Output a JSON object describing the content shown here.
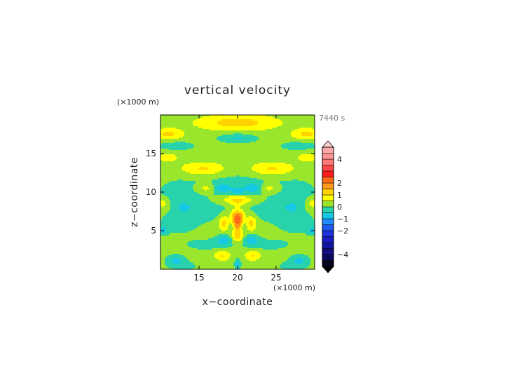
{
  "chart_data": {
    "type": "heatmap",
    "title": "vertical velocity",
    "xlabel": "x−coordinate",
    "ylabel": "z−coordinate",
    "x_unit": "(×1000 m)",
    "y_unit": "(×1000 m)",
    "time_label": "7440 s",
    "xlim": [
      10,
      30
    ],
    "ylim": [
      0,
      20
    ],
    "x_ticks": [
      15,
      20,
      25
    ],
    "y_ticks": [
      5,
      10,
      15
    ],
    "colorbar": {
      "levels": [
        -5,
        -4.5,
        -4,
        -3.5,
        -3,
        -2.5,
        -2,
        -1.5,
        -1,
        -0.5,
        0,
        0.5,
        1,
        1.5,
        2,
        2.5,
        3,
        3.5,
        4,
        4.5,
        5
      ],
      "colors": [
        "#05051e",
        "#0a0a5a",
        "#101080",
        "#1414a0",
        "#1a1ac0",
        "#1e32dc",
        "#1e5af0",
        "#1e8cff",
        "#14c8e6",
        "#28d2aa",
        "#9ae62d",
        "#ffff00",
        "#ffd200",
        "#ff9a19",
        "#ff6a19",
        "#ff1e1e",
        "#ff4646",
        "#ff7878",
        "#ff9696",
        "#ffaaaa",
        "#ffc8c8"
      ],
      "labeled_ticks": [
        -4,
        -2,
        -1,
        0,
        1,
        2,
        4
      ],
      "tick_labels": [
        "−4",
        "−2",
        "−1",
        "0",
        "1",
        "2",
        "4"
      ]
    },
    "features": [
      {
        "x": 20,
        "z": 19,
        "sx": 3.5,
        "sz": 0.7,
        "value": 1.0
      },
      {
        "x": 20,
        "z": 17,
        "sx": 1.8,
        "sz": 0.45,
        "value": -0.8
      },
      {
        "x": 11,
        "z": 17.5,
        "sx": 1.3,
        "sz": 0.5,
        "value": 0.9
      },
      {
        "x": 29,
        "z": 17.5,
        "sx": 1.3,
        "sz": 0.5,
        "value": 0.9
      },
      {
        "x": 12,
        "z": 16,
        "sx": 2.0,
        "sz": 0.5,
        "value": -0.5
      },
      {
        "x": 28,
        "z": 16,
        "sx": 2.0,
        "sz": 0.5,
        "value": -0.5
      },
      {
        "x": 15.5,
        "z": 13,
        "sx": 2.0,
        "sz": 0.6,
        "value": 0.9
      },
      {
        "x": 24.5,
        "z": 13,
        "sx": 2.0,
        "sz": 0.6,
        "value": 0.9
      },
      {
        "x": 11,
        "z": 14.5,
        "sx": 1.0,
        "sz": 0.5,
        "value": 0.5
      },
      {
        "x": 29,
        "z": 14.5,
        "sx": 1.0,
        "sz": 0.5,
        "value": 0.5
      },
      {
        "x": 20,
        "z": 11,
        "sx": 4.0,
        "sz": 1.4,
        "value": -0.4
      },
      {
        "x": 18,
        "z": 10.5,
        "sx": 0.8,
        "sz": 0.4,
        "value": -0.9
      },
      {
        "x": 22,
        "z": 10.5,
        "sx": 0.8,
        "sz": 0.4,
        "value": -0.9
      },
      {
        "x": 20,
        "z": 10,
        "sx": 0.5,
        "sz": 0.4,
        "value": -0.8
      },
      {
        "x": 16,
        "z": 10.5,
        "sx": 0.9,
        "sz": 0.4,
        "value": 0.7
      },
      {
        "x": 24,
        "z": 10.5,
        "sx": 0.9,
        "sz": 0.4,
        "value": 0.7
      },
      {
        "x": 20,
        "z": 9.0,
        "sx": 1.5,
        "sz": 0.4,
        "value": 1.0
      },
      {
        "x": 12,
        "z": 9.5,
        "sx": 2.5,
        "sz": 2.0,
        "value": -0.35
      },
      {
        "x": 28,
        "z": 9.5,
        "sx": 2.5,
        "sz": 2.0,
        "value": -0.35
      },
      {
        "x": 10.3,
        "z": 8.5,
        "sx": 0.5,
        "sz": 0.5,
        "value": 0.7
      },
      {
        "x": 29.7,
        "z": 8.5,
        "sx": 0.5,
        "sz": 0.5,
        "value": 0.7
      },
      {
        "x": 13,
        "z": 8.0,
        "sx": 0.6,
        "sz": 0.4,
        "value": -0.8
      },
      {
        "x": 27,
        "z": 8.0,
        "sx": 0.6,
        "sz": 0.4,
        "value": -0.8
      },
      {
        "x": 16.5,
        "z": 7.5,
        "sx": 2.0,
        "sz": 1.0,
        "value": -0.4
      },
      {
        "x": 23.5,
        "z": 7.5,
        "sx": 2.0,
        "sz": 1.0,
        "value": -0.4
      },
      {
        "x": 20,
        "z": 6.5,
        "sx": 0.55,
        "sz": 1.1,
        "value": 2.3
      },
      {
        "x": 20,
        "z": 7.8,
        "sx": 0.4,
        "sz": 0.35,
        "value": -0.6
      },
      {
        "x": 18.2,
        "z": 6.0,
        "sx": 0.45,
        "sz": 0.7,
        "value": 1.0
      },
      {
        "x": 21.8,
        "z": 6.0,
        "sx": 0.45,
        "sz": 0.7,
        "value": 1.0
      },
      {
        "x": 19.2,
        "z": 5.5,
        "sx": 0.3,
        "sz": 0.4,
        "value": -0.6
      },
      {
        "x": 20.8,
        "z": 5.5,
        "sx": 0.3,
        "sz": 0.4,
        "value": -0.6
      },
      {
        "x": 10.3,
        "z": 5.0,
        "sx": 0.5,
        "sz": 0.4,
        "value": -0.8
      },
      {
        "x": 29.7,
        "z": 5.0,
        "sx": 0.5,
        "sz": 0.4,
        "value": -0.8
      },
      {
        "x": 12.5,
        "z": 5.8,
        "sx": 2.0,
        "sz": 1.0,
        "value": -0.4
      },
      {
        "x": 27.5,
        "z": 5.8,
        "sx": 2.0,
        "sz": 1.0,
        "value": -0.4
      },
      {
        "x": 18.2,
        "z": 3.8,
        "sx": 0.7,
        "sz": 0.5,
        "value": -0.9
      },
      {
        "x": 21.8,
        "z": 3.8,
        "sx": 0.7,
        "sz": 0.5,
        "value": -0.9
      },
      {
        "x": 19.7,
        "z": 4.2,
        "sx": 0.3,
        "sz": 0.45,
        "value": 0.7
      },
      {
        "x": 20.3,
        "z": 4.2,
        "sx": 0.3,
        "sz": 0.45,
        "value": 0.7
      },
      {
        "x": 16,
        "z": 3.2,
        "sx": 2.2,
        "sz": 0.6,
        "value": -0.45
      },
      {
        "x": 24,
        "z": 3.2,
        "sx": 2.2,
        "sz": 0.6,
        "value": -0.45
      },
      {
        "x": 18,
        "z": 1.8,
        "sx": 0.7,
        "sz": 0.45,
        "value": 0.8
      },
      {
        "x": 22,
        "z": 1.8,
        "sx": 0.7,
        "sz": 0.45,
        "value": 0.8
      },
      {
        "x": 20,
        "z": 0.6,
        "sx": 0.3,
        "sz": 0.5,
        "value": -0.9
      },
      {
        "x": 12,
        "z": 1.2,
        "sx": 0.9,
        "sz": 0.5,
        "value": -0.8
      },
      {
        "x": 28,
        "z": 1.2,
        "sx": 0.9,
        "sz": 0.5,
        "value": -0.8
      },
      {
        "x": 13,
        "z": 0.4,
        "sx": 1.6,
        "sz": 0.5,
        "value": -0.4
      },
      {
        "x": 27,
        "z": 0.4,
        "sx": 1.6,
        "sz": 0.5,
        "value": -0.4
      }
    ]
  }
}
